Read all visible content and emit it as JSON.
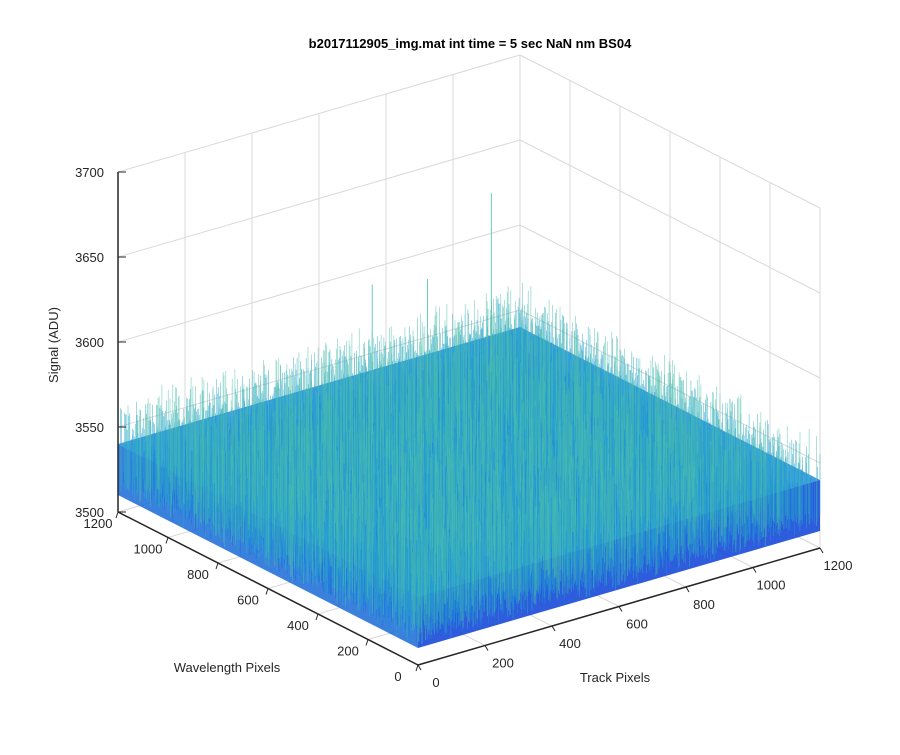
{
  "figure": {
    "background": "#ffffff"
  },
  "chart_data": {
    "type": "surface",
    "title": "b2017112905_img.mat int time = 5 sec  NaN nm BS04",
    "xlabel": "Track Pixels",
    "ylabel": "Wavelength Pixels",
    "zlabel": "Signal (ADU)",
    "xlim": [
      0,
      1200
    ],
    "ylim": [
      0,
      1200
    ],
    "zlim": [
      3500,
      3700
    ],
    "x_ticks": [
      "0",
      "200",
      "400",
      "600",
      "800",
      "1000",
      "1200"
    ],
    "y_ticks": [
      "0",
      "200",
      "400",
      "600",
      "800",
      "1000",
      "1200"
    ],
    "z_ticks": [
      "3500",
      "3550",
      "3600",
      "3650",
      "3700"
    ],
    "grid": true,
    "surface": {
      "x_range": [
        0,
        1200
      ],
      "y_range": [
        0,
        1200
      ],
      "mean_level": 3540,
      "noise_range": [
        3510,
        3575
      ],
      "spikes": [
        {
          "x": 520,
          "y": 880,
          "z": 3628
        },
        {
          "x": 980,
          "y": 1020,
          "z": 3645
        },
        {
          "x": 760,
          "y": 980,
          "z": 3610
        }
      ],
      "colormap": [
        "#0a3fd6",
        "#1a6ad8",
        "#1e90d8",
        "#2aa7c8",
        "#4cbfa8"
      ]
    },
    "colors": {
      "axis": "#262626",
      "grid": "#d9d9d9",
      "tick_label": "#262626"
    }
  }
}
